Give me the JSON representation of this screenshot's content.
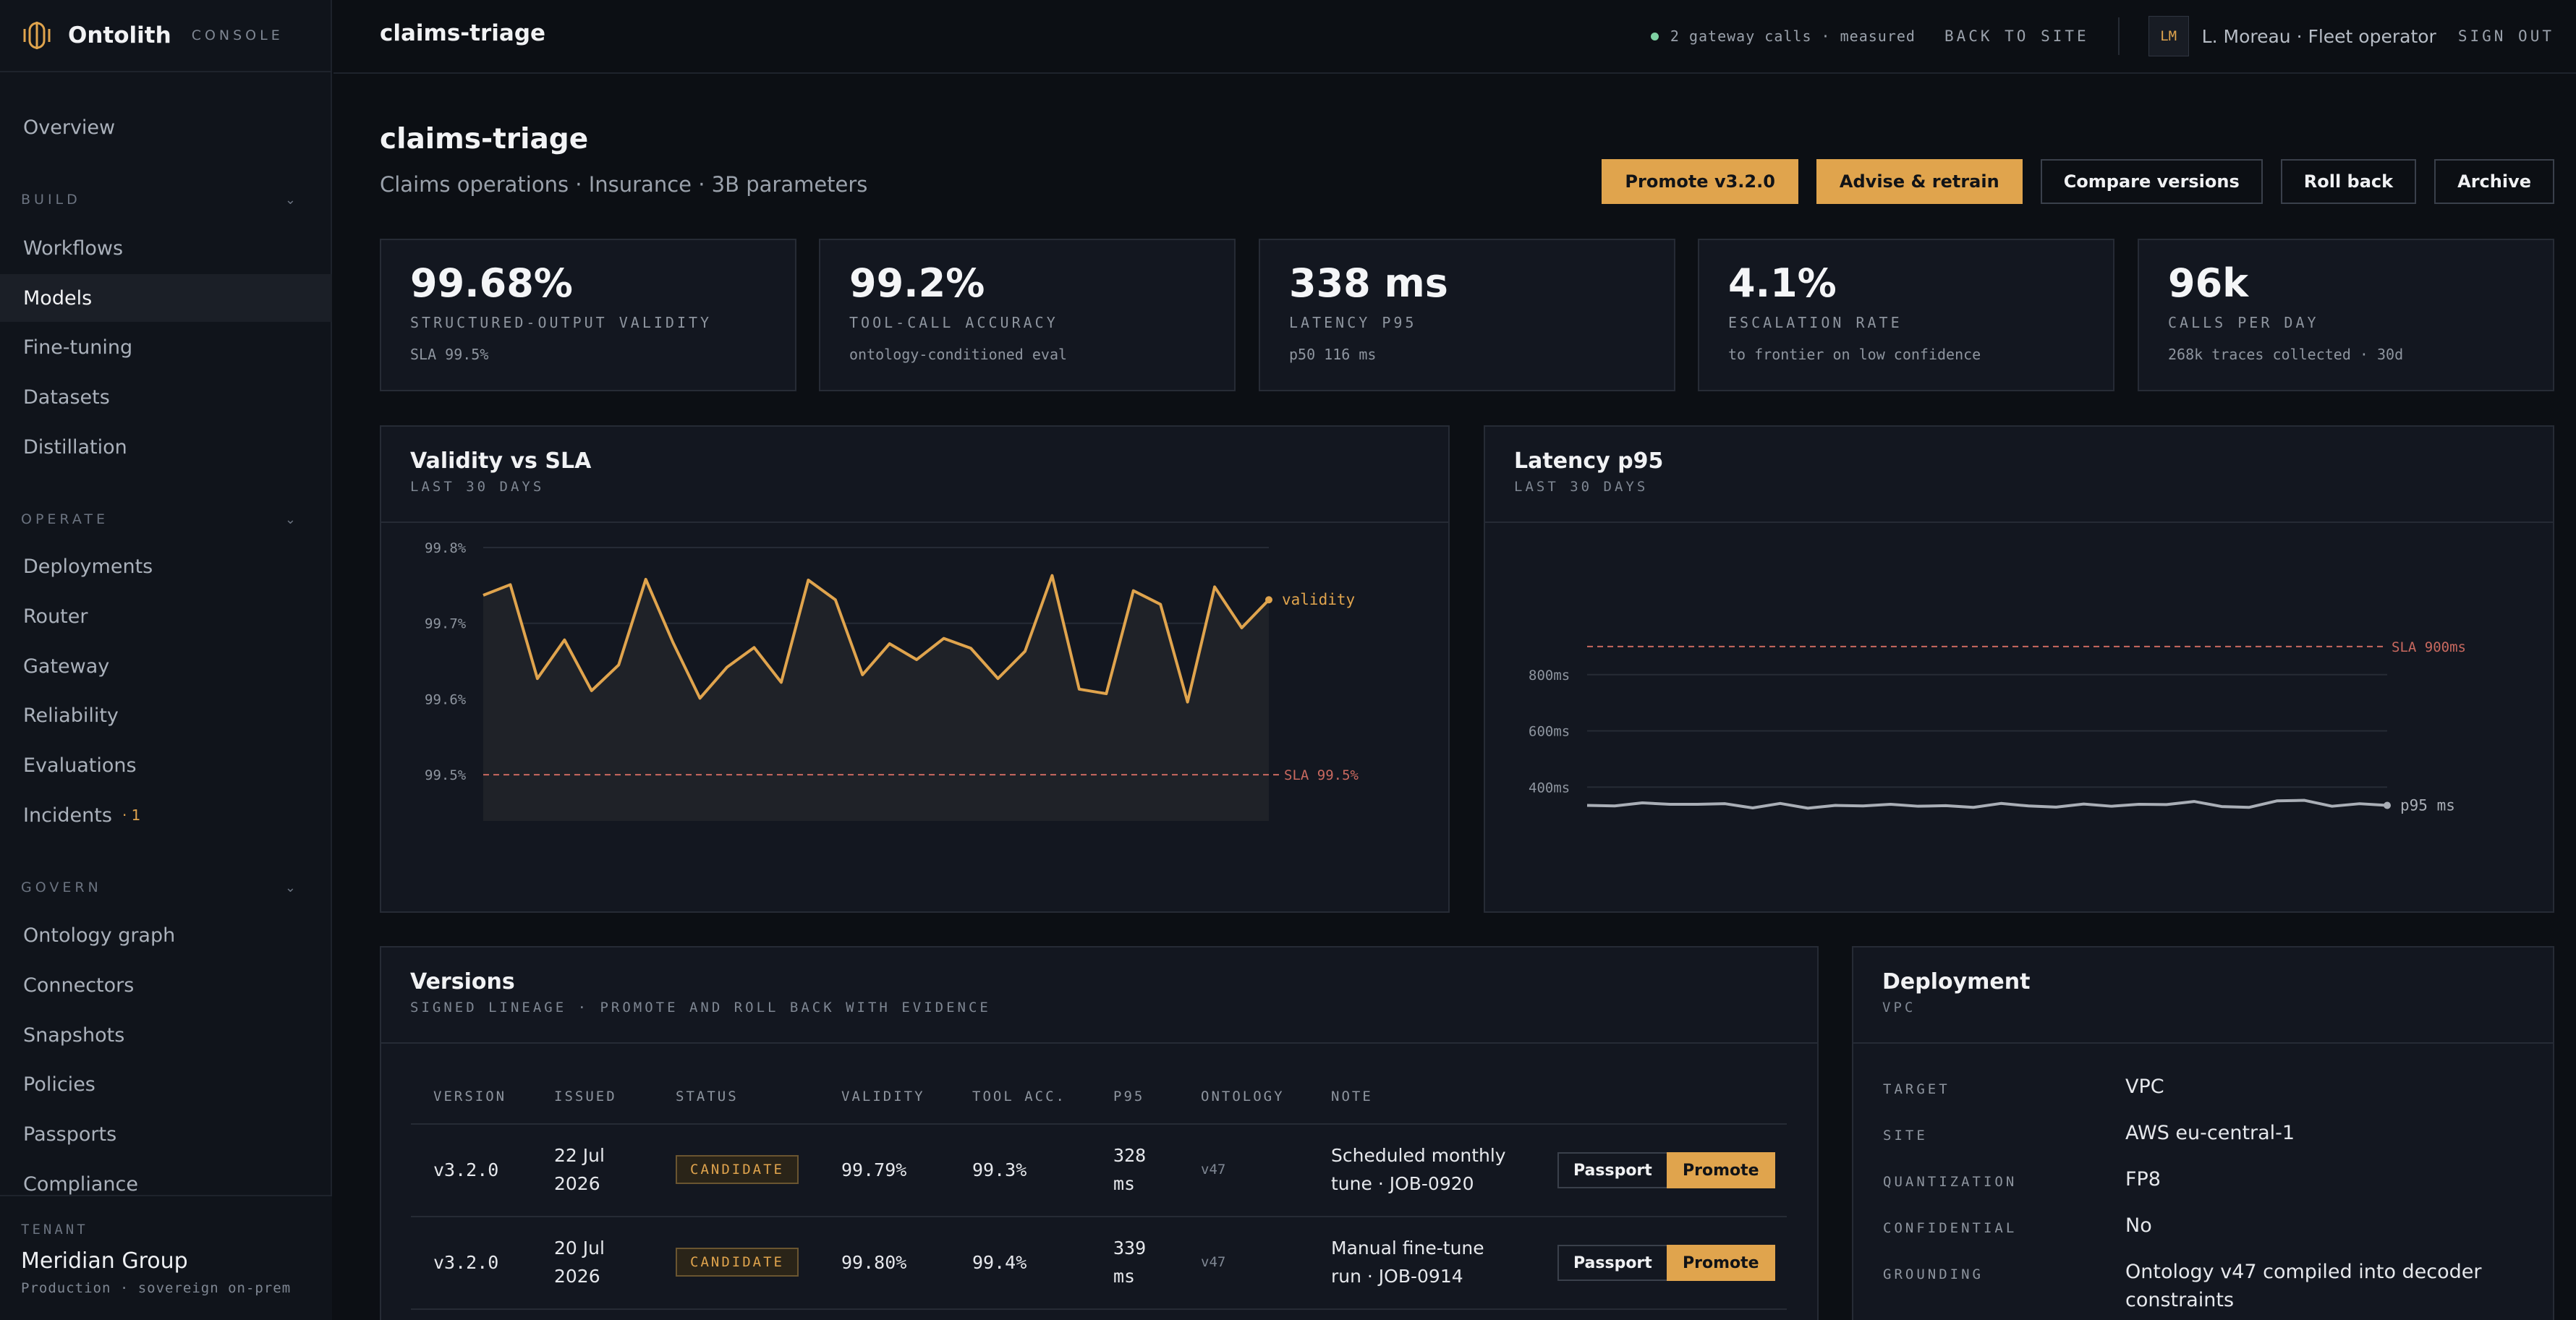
{
  "brand": {
    "name": "Ontolith",
    "console_label": "CONSOLE"
  },
  "sidebar": {
    "overview": "Overview",
    "sections": [
      {
        "label": "BUILD",
        "items": [
          "Workflows",
          "Models",
          "Fine-tuning",
          "Datasets",
          "Distillation"
        ]
      },
      {
        "label": "OPERATE",
        "items": [
          "Deployments",
          "Router",
          "Gateway",
          "Reliability",
          "Evaluations",
          "Incidents"
        ]
      },
      {
        "label": "GOVERN",
        "items": [
          "Ontology graph",
          "Connectors",
          "Snapshots",
          "Policies",
          "Passports",
          "Compliance"
        ]
      }
    ],
    "active_item": "Models",
    "incidents_badge": "· 1",
    "tenant": {
      "label": "TENANT",
      "name": "Meridian Group",
      "sub": "Production · sovereign on-prem"
    }
  },
  "header": {
    "breadcrumb": "claims-triage",
    "gateway_status": "2 gateway calls · measured",
    "back_link": "BACK TO SITE",
    "avatar_initials": "LM",
    "user": "L. Moreau · Fleet operator",
    "sign_out": "SIGN OUT"
  },
  "page": {
    "title": "claims-triage",
    "subtitle": "Claims operations · Insurance · 3B parameters",
    "actions": [
      "Promote v3.2.0",
      "Advise & retrain",
      "Compare versions",
      "Roll back",
      "Archive"
    ]
  },
  "kpis": [
    {
      "value": "99.68%",
      "label": "STRUCTURED-OUTPUT VALIDITY",
      "sub": "SLA 99.5%"
    },
    {
      "value": "99.2%",
      "label": "TOOL-CALL ACCURACY",
      "sub": "ontology-conditioned eval"
    },
    {
      "value": "338 ms",
      "label": "LATENCY P95",
      "sub": "p50 116 ms"
    },
    {
      "value": "4.1%",
      "label": "ESCALATION RATE",
      "sub": "to frontier on low confidence"
    },
    {
      "value": "96k",
      "label": "CALLS PER DAY",
      "sub": "268k traces collected · 30d"
    }
  ],
  "chart_data": [
    {
      "type": "area",
      "title": "Validity vs SLA",
      "subtitle": "LAST 30 DAYS",
      "y_ticks": [
        "99.8%",
        "99.7%",
        "99.6%",
        "99.5%"
      ],
      "ylim": [
        99.46,
        99.8
      ],
      "series": [
        {
          "name": "validity",
          "values": [
            99.737,
            99.751,
            99.627,
            99.678,
            99.611,
            99.645,
            99.758,
            99.675,
            99.601,
            99.642,
            99.668,
            99.622,
            99.757,
            99.731,
            99.632,
            99.673,
            99.652,
            99.68,
            99.667,
            99.627,
            99.663,
            99.763,
            99.613,
            99.607,
            99.743,
            99.725,
            99.596,
            99.748,
            99.694,
            99.731
          ]
        }
      ],
      "threshold": {
        "label": "SLA 99.5%",
        "value": 99.5
      },
      "grid": true
    },
    {
      "type": "line",
      "title": "Latency p95",
      "subtitle": "LAST 30 DAYS",
      "y_ticks": [
        "800ms",
        "600ms",
        "400ms"
      ],
      "ylim": [
        200,
        1000
      ],
      "series": [
        {
          "name": "p95 ms",
          "values": [
            335,
            333,
            344,
            339,
            339,
            341,
            326,
            342,
            325,
            335,
            333,
            339,
            332,
            334,
            328,
            342,
            333,
            329,
            340,
            332,
            339,
            338,
            349,
            331,
            328,
            351,
            353,
            332,
            341,
            335
          ]
        }
      ],
      "threshold": {
        "label": "SLA 900ms",
        "value": 900
      },
      "grid": true
    }
  ],
  "versions": {
    "title": "Versions",
    "subtitle": "SIGNED LINEAGE · PROMOTE AND ROLL BACK WITH EVIDENCE",
    "columns": [
      "VERSION",
      "ISSUED",
      "STATUS",
      "VALIDITY",
      "TOOL ACC.",
      "P95",
      "ONTOLOGY",
      "NOTE"
    ],
    "rows": [
      {
        "version": "v3.2.0",
        "issued": [
          "22 Jul",
          "2026"
        ],
        "status": "CANDIDATE",
        "validity": "99.79%",
        "tool_acc": "99.3%",
        "p95": [
          "328",
          "ms"
        ],
        "ontology": "v47",
        "note": [
          "Scheduled monthly",
          "tune · JOB-0920"
        ],
        "passport": "Passport",
        "promote": "Promote"
      },
      {
        "version": "v3.2.0",
        "issued": [
          "20 Jul",
          "2026"
        ],
        "status": "CANDIDATE",
        "validity": "99.80%",
        "tool_acc": "99.4%",
        "p95": [
          "339",
          "ms"
        ],
        "ontology": "v47",
        "note": [
          "Manual fine-tune",
          "run · JOB-0914"
        ],
        "passport": "Passport",
        "promote": "Promote"
      }
    ]
  },
  "deployment": {
    "title": "Deployment",
    "subtitle": "VPC",
    "fields": [
      {
        "key": "TARGET",
        "value": "VPC"
      },
      {
        "key": "SITE",
        "value": "AWS eu-central-1"
      },
      {
        "key": "QUANTIZATION",
        "value": "FP8"
      },
      {
        "key": "CONFIDENTIAL",
        "value": "No"
      },
      {
        "key": "GROUNDING",
        "value": "Ontology v47 compiled into decoder constraints"
      }
    ]
  },
  "colors": {
    "accent": "#e0a44d",
    "sla_line": "#c9695f",
    "latency_line": "#a9aeb6",
    "status_ok": "#7fd1a3"
  }
}
